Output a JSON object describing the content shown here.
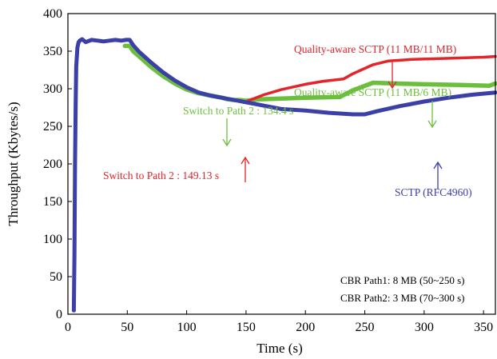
{
  "chart_data": {
    "type": "line",
    "xlabel": "Time (s)",
    "ylabel": "Throughput (Kbytes/s)",
    "xlim": [
      0,
      360
    ],
    "ylim": [
      0,
      400
    ],
    "xticks": [
      0,
      50,
      100,
      150,
      200,
      250,
      300,
      350
    ],
    "yticks": [
      0,
      50,
      100,
      150,
      200,
      250,
      300,
      350,
      400
    ],
    "grid": false,
    "series": [
      {
        "name": "SCTP (RFC4960)",
        "color": "#3b3fa8",
        "x": [
          5,
          5.5,
          6,
          6.5,
          7,
          8,
          9,
          10,
          12,
          15,
          20,
          25,
          30,
          35,
          40,
          45,
          49,
          52,
          55,
          60,
          70,
          80,
          90,
          100,
          110,
          120,
          130,
          140,
          150,
          160,
          170,
          180,
          200,
          220,
          240,
          250,
          260,
          280,
          300,
          320,
          340,
          360
        ],
        "values": [
          5,
          80,
          200,
          280,
          330,
          355,
          362,
          364,
          366,
          362,
          365,
          364,
          363,
          364,
          365,
          364,
          365,
          365,
          358,
          349,
          335,
          322,
          311,
          302,
          295,
          291,
          288,
          285,
          282,
          279,
          276,
          273,
          271,
          268,
          266,
          266,
          270,
          277,
          283,
          288,
          292,
          295
        ]
      },
      {
        "name": "Quality-aware SCTP (11 MB/6 MB)",
        "color": "#6cbf3c",
        "x": [
          48,
          52,
          55,
          60,
          70,
          80,
          90,
          100,
          110,
          120,
          130,
          134.4,
          140,
          145,
          150,
          160,
          180,
          200,
          229,
          240,
          257,
          275,
          300,
          330,
          355,
          360
        ],
        "values": [
          357,
          357,
          350,
          343,
          329,
          317,
          307,
          299,
          294,
          291,
          288,
          286,
          285,
          285,
          284,
          286,
          287,
          288,
          289,
          298,
          308,
          307,
          306,
          305,
          304,
          307
        ]
      },
      {
        "name": "Quality-aware SCTP (11 MB/11 MB)",
        "color": "#e3242b",
        "x": [
          149.13,
          155,
          165,
          180,
          200,
          215,
          232,
          240,
          257,
          270,
          290,
          310,
          330,
          350,
          360
        ],
        "values": [
          282,
          286,
          292,
          299,
          306,
          310,
          313,
          320,
          332,
          337,
          339,
          340,
          341,
          342,
          343
        ]
      }
    ],
    "annotations": [
      {
        "text": "Quality-aware SCTP (11 MB/11 MB)",
        "color": "#e3242b"
      },
      {
        "text": "Quality-aware SCTP (11 MB/6 MB)",
        "color": "#6cbf3c"
      },
      {
        "text": "Switch to Path 2 : 134.4 s",
        "color": "#6cbf3c"
      },
      {
        "text": "Switch to Path 2 : 149.13 s",
        "color": "#e3242b"
      },
      {
        "text": "SCTP (RFC4960)",
        "color": "#3b3fa8"
      }
    ],
    "info_lines": [
      "CBR Path1: 8 MB (50~250 s)",
      "CBR Path2: 3 MB (70~300 s)"
    ]
  }
}
